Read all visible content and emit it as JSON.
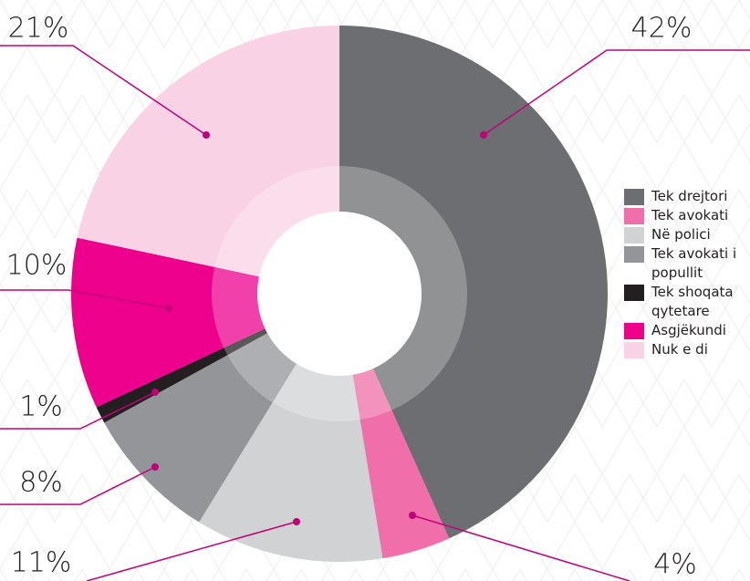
{
  "chart_data": {
    "type": "donut",
    "categories": [
      "Tek drejtori",
      "Tek avokati",
      "Në polici",
      "Tek avokati i popullit",
      "Tek shoqata qytetare",
      "Asgjëkundi",
      "Nuk e di"
    ],
    "values": [
      42,
      4,
      11,
      8,
      1,
      10,
      21
    ],
    "value_labels": [
      "42%",
      "4%",
      "11%",
      "8%",
      "1%",
      "10%",
      "21%"
    ],
    "colors": [
      "#6d6e71",
      "#f06ea9",
      "#d1d2d4",
      "#939598",
      "#231f20",
      "#ec008c",
      "#f9d3e5"
    ],
    "legend": "right"
  }
}
